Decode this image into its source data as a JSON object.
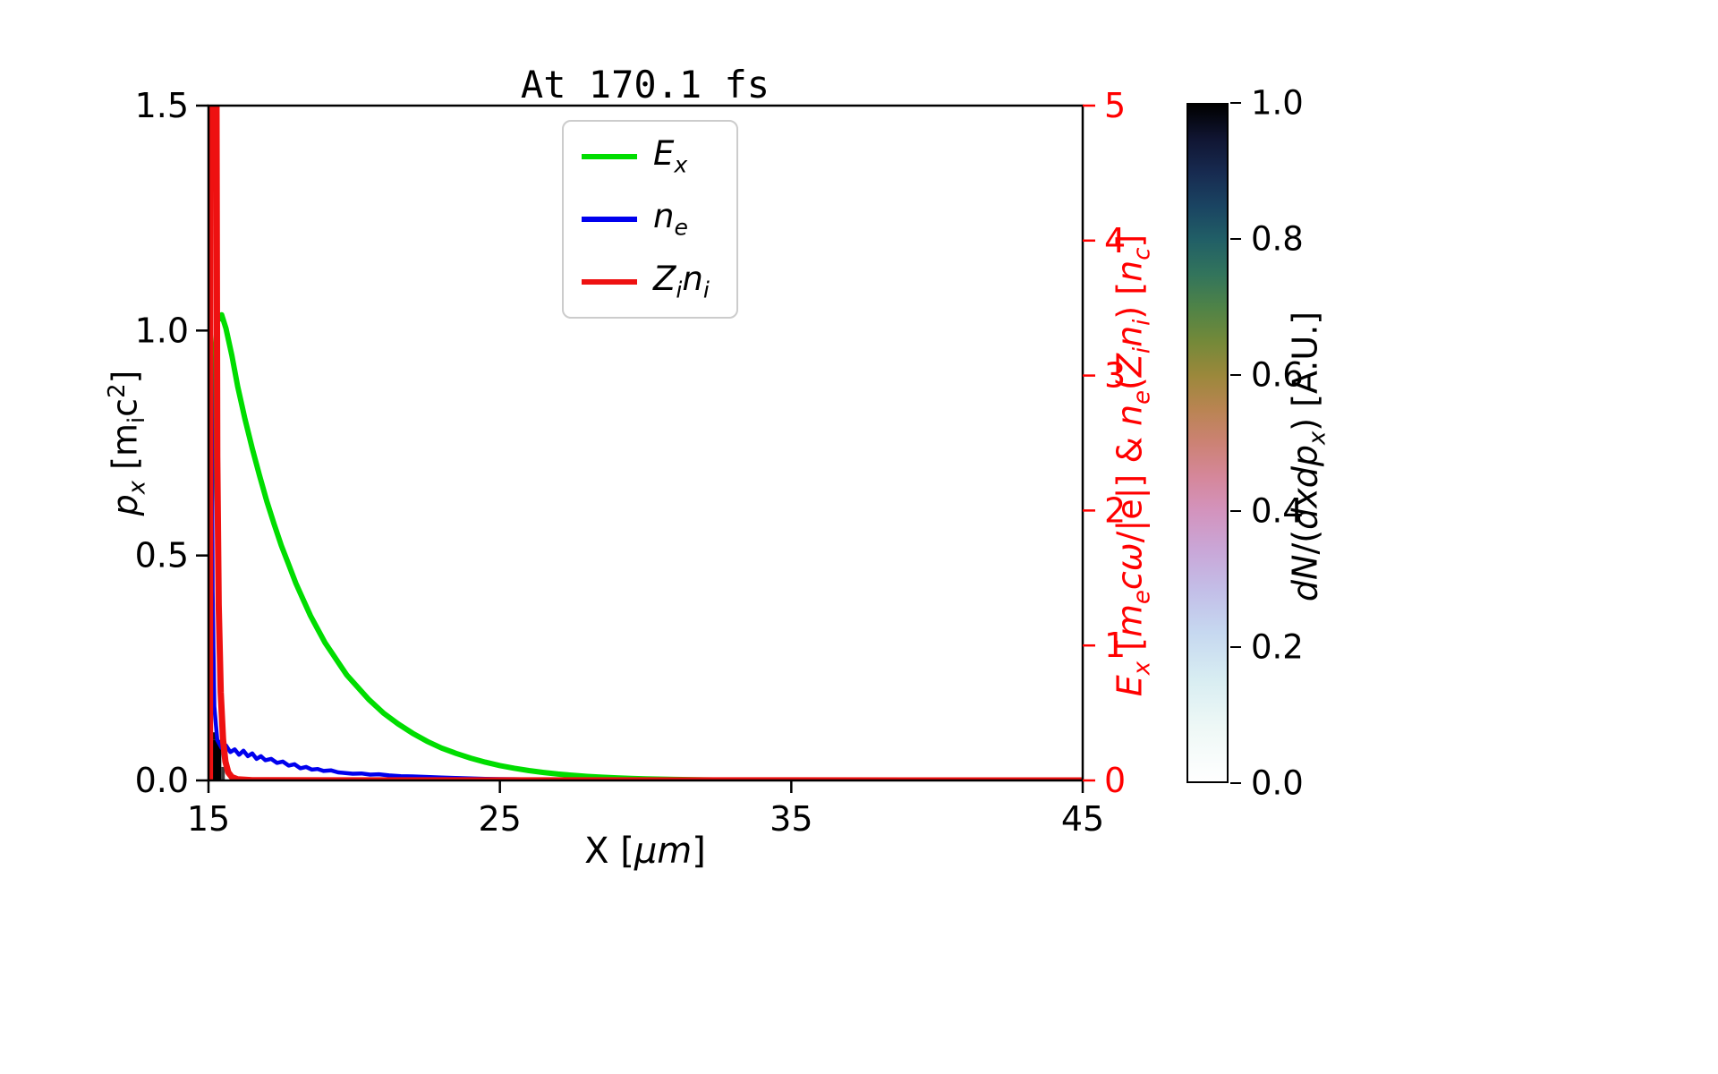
{
  "chart_data": {
    "type": "line",
    "title": "At 170.1 fs",
    "x_range": [
      15,
      45
    ],
    "x_ticks": [
      {
        "v": 15,
        "label": "15"
      },
      {
        "v": 25,
        "label": "25"
      },
      {
        "v": 35,
        "label": "35"
      },
      {
        "v": 45,
        "label": "45"
      }
    ],
    "left_y_range": [
      0,
      1.5
    ],
    "left_y_ticks": [
      {
        "v": 0,
        "label": "0.0"
      },
      {
        "v": 0.5,
        "label": "0.5"
      },
      {
        "v": 1.0,
        "label": "1.0"
      },
      {
        "v": 1.5,
        "label": "1.5"
      }
    ],
    "right_y_range": [
      0,
      5
    ],
    "right_y_ticks": [
      {
        "v": 0,
        "label": "0"
      },
      {
        "v": 1,
        "label": "1"
      },
      {
        "v": 2,
        "label": "2"
      },
      {
        "v": 3,
        "label": "3"
      },
      {
        "v": 4,
        "label": "4"
      },
      {
        "v": 5,
        "label": "5"
      }
    ],
    "grid": false,
    "legend_position": "upper center",
    "series": [
      {
        "name": "E_x",
        "axis": "right",
        "color": "#00dd00",
        "width": 6,
        "points": [
          [
            15.0,
            0.7
          ],
          [
            15.1,
            2.0
          ],
          [
            15.2,
            3.0
          ],
          [
            15.3,
            3.4
          ],
          [
            15.45,
            3.45
          ],
          [
            15.6,
            3.35
          ],
          [
            15.8,
            3.15
          ],
          [
            16.0,
            2.92
          ],
          [
            16.25,
            2.68
          ],
          [
            16.5,
            2.46
          ],
          [
            16.75,
            2.26
          ],
          [
            17.0,
            2.07
          ],
          [
            17.25,
            1.9
          ],
          [
            17.5,
            1.74
          ],
          [
            17.75,
            1.6
          ],
          [
            18.0,
            1.46
          ],
          [
            18.25,
            1.34
          ],
          [
            18.5,
            1.22
          ],
          [
            18.75,
            1.12
          ],
          [
            19.0,
            1.02
          ],
          [
            19.25,
            0.94
          ],
          [
            19.5,
            0.86
          ],
          [
            19.75,
            0.78
          ],
          [
            20.0,
            0.72
          ],
          [
            20.25,
            0.66
          ],
          [
            20.5,
            0.6
          ],
          [
            20.75,
            0.55
          ],
          [
            21.0,
            0.5
          ],
          [
            21.5,
            0.42
          ],
          [
            22.0,
            0.35
          ],
          [
            22.5,
            0.29
          ],
          [
            23.0,
            0.24
          ],
          [
            23.5,
            0.2
          ],
          [
            24.0,
            0.165
          ],
          [
            24.5,
            0.135
          ],
          [
            25.0,
            0.11
          ],
          [
            25.5,
            0.09
          ],
          [
            26.0,
            0.073
          ],
          [
            26.5,
            0.059
          ],
          [
            27.0,
            0.047
          ],
          [
            27.5,
            0.038
          ],
          [
            28.0,
            0.03
          ],
          [
            28.5,
            0.024
          ],
          [
            29.0,
            0.019
          ],
          [
            29.5,
            0.015
          ],
          [
            30.0,
            0.012
          ],
          [
            31.0,
            0.007
          ],
          [
            32.0,
            0.004
          ],
          [
            33.0,
            0.002
          ],
          [
            34.0,
            0.001
          ],
          [
            35.0,
            0.0
          ],
          [
            45.0,
            0.0
          ]
        ]
      },
      {
        "name": "n_e",
        "axis": "right",
        "color": "#0000ee",
        "width": 4.5,
        "points": [
          [
            15.0,
            0.0
          ],
          [
            15.02,
            2.6
          ],
          [
            15.05,
            3.3
          ],
          [
            15.1,
            3.15
          ],
          [
            15.14,
            1.4
          ],
          [
            15.2,
            0.55
          ],
          [
            15.3,
            0.3
          ],
          [
            15.45,
            0.24
          ],
          [
            15.6,
            0.26
          ],
          [
            15.75,
            0.21
          ],
          [
            15.9,
            0.23
          ],
          [
            16.05,
            0.19
          ],
          [
            16.2,
            0.22
          ],
          [
            16.35,
            0.18
          ],
          [
            16.5,
            0.2
          ],
          [
            16.65,
            0.16
          ],
          [
            16.8,
            0.18
          ],
          [
            16.95,
            0.15
          ],
          [
            17.15,
            0.16
          ],
          [
            17.35,
            0.13
          ],
          [
            17.55,
            0.14
          ],
          [
            17.75,
            0.11
          ],
          [
            17.95,
            0.12
          ],
          [
            18.15,
            0.09
          ],
          [
            18.35,
            0.1
          ],
          [
            18.55,
            0.08
          ],
          [
            18.75,
            0.085
          ],
          [
            18.95,
            0.07
          ],
          [
            19.2,
            0.075
          ],
          [
            19.45,
            0.06
          ],
          [
            19.7,
            0.055
          ],
          [
            19.95,
            0.05
          ],
          [
            20.25,
            0.052
          ],
          [
            20.55,
            0.043
          ],
          [
            20.85,
            0.046
          ],
          [
            21.2,
            0.037
          ],
          [
            21.6,
            0.032
          ],
          [
            22.0,
            0.03
          ],
          [
            22.5,
            0.026
          ],
          [
            23.0,
            0.021
          ],
          [
            23.5,
            0.018
          ],
          [
            24.0,
            0.015
          ],
          [
            24.5,
            0.012
          ],
          [
            25.0,
            0.01
          ],
          [
            25.5,
            0.009
          ],
          [
            26.0,
            0.007
          ],
          [
            27.0,
            0.005
          ],
          [
            28.0,
            0.003
          ],
          [
            29.0,
            0.002
          ],
          [
            30.0,
            0.001
          ],
          [
            32.0,
            0.0005
          ],
          [
            35.0,
            0.0
          ],
          [
            45.0,
            0.0
          ]
        ]
      },
      {
        "name": "Z_i n_i",
        "axis": "right",
        "color": "#ee1111",
        "width": 7,
        "points": [
          [
            15.0,
            0.0
          ],
          [
            15.05,
            0.0
          ],
          [
            15.07,
            5.5
          ],
          [
            15.27,
            5.5
          ],
          [
            15.3,
            2.4
          ],
          [
            15.35,
            1.3
          ],
          [
            15.42,
            0.65
          ],
          [
            15.5,
            0.3
          ],
          [
            15.58,
            0.14
          ],
          [
            15.68,
            0.06
          ],
          [
            15.8,
            0.025
          ],
          [
            16.0,
            0.008
          ],
          [
            16.5,
            0.002
          ],
          [
            17.0,
            0.001
          ],
          [
            45.0,
            0.0
          ]
        ]
      }
    ],
    "histogram_cells": [
      {
        "x0": 15.0,
        "x1": 15.44,
        "p0": 0.0,
        "p1": 0.09,
        "color": "#000000"
      },
      {
        "x0": 15.0,
        "x1": 15.26,
        "p0": 0.09,
        "p1": 0.107,
        "color": "#101010"
      },
      {
        "x0": 15.44,
        "x1": 15.56,
        "p0": 0.0,
        "p1": 0.03,
        "color": "#3a3a3a"
      }
    ],
    "colorbar": {
      "range": [
        0,
        1
      ],
      "ticks": [
        {
          "v": 0.0,
          "label": "0.0"
        },
        {
          "v": 0.2,
          "label": "0.2"
        },
        {
          "v": 0.4,
          "label": "0.4"
        },
        {
          "v": 0.6,
          "label": "0.6"
        },
        {
          "v": 0.8,
          "label": "0.8"
        },
        {
          "v": 1.0,
          "label": "1.0"
        }
      ],
      "stops": [
        [
          0.0,
          "#ffffff"
        ],
        [
          0.08,
          "#eef8f6"
        ],
        [
          0.15,
          "#d8edf2"
        ],
        [
          0.22,
          "#c6d8f0"
        ],
        [
          0.28,
          "#c3bfe8"
        ],
        [
          0.34,
          "#c9a7d8"
        ],
        [
          0.4,
          "#d393bd"
        ],
        [
          0.45,
          "#d5879a"
        ],
        [
          0.5,
          "#cc8274"
        ],
        [
          0.55,
          "#b98452"
        ],
        [
          0.6,
          "#9b883b"
        ],
        [
          0.65,
          "#748939"
        ],
        [
          0.7,
          "#4f8347"
        ],
        [
          0.75,
          "#32745c"
        ],
        [
          0.8,
          "#215f66"
        ],
        [
          0.85,
          "#1a4462"
        ],
        [
          0.9,
          "#172a50"
        ],
        [
          0.95,
          "#101532"
        ],
        [
          1.0,
          "#000000"
        ]
      ]
    }
  },
  "labels": {
    "title": "At 170.1 fs",
    "x_html": "X [<i>μm</i>]",
    "left_y_html": "<i>p<sub>x</sub></i> [m<sub>i</sub>c<sup>2</sup>]",
    "right_y_html": "<i>E<sub>x</sub></i> [<i>m<sub>e</sub>cω</i>/|e|] &amp; <i>n<sub>e</sub></i>(<i>Z<sub>i</sub>n<sub>i</sub></i>) [<i>n<sub>c</sub></i>]",
    "colorbar_html": "<i>dN</i>/(<i>dxdp<sub>x</sub></i>) [A.U.]"
  },
  "colors": {
    "right_axis": "#ff0000",
    "frame": "#000000"
  },
  "legend": {
    "items": [
      {
        "label_html": "<i>E<sub>x</sub></i>",
        "color": "#00dd00"
      },
      {
        "label_html": "<i>n<sub>e</sub></i>",
        "color": "#0000ee"
      },
      {
        "label_html": "<i>Z<sub>i</sub>n<sub>i</sub></i>",
        "color": "#ee1111"
      }
    ]
  }
}
